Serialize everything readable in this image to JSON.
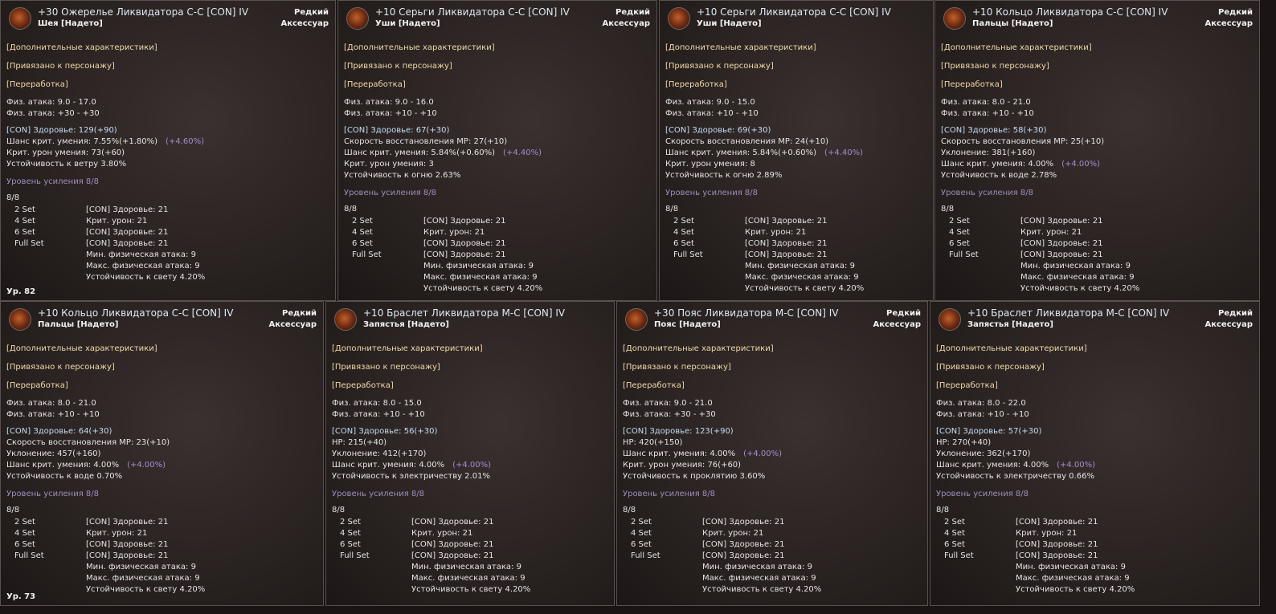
{
  "panels": [
    {
      "title": "+30 Ожерелье Ликвидатора С-С [CON] IV",
      "grade": "Редкий",
      "slot": "Шея [Надето]",
      "kind": "Аксессуар",
      "tags": [
        "[Дополнительные характеристики]",
        "[Привязано к персонажу]",
        "[Переработка]"
      ],
      "base": [
        "Физ. атака: 9.0 - 17.0",
        "Физ. атака: +30 - +30"
      ],
      "extra": [
        {
          "text": "[CON] Здоровье: 129(+90)"
        },
        {
          "text": "Шанс крит. умения: 7.55%(+1.80%)",
          "bonus": "(+4.60%)"
        },
        {
          "text": "Крит. урон умения: 73(+60)"
        },
        {
          "text": "Устойчивость к ветру 3.80%"
        }
      ],
      "enhance": "Уровень усиления 8/8",
      "set_count": "8/8",
      "sets": [
        [
          "2 Set",
          "[CON] Здоровье: 21"
        ],
        [
          "4 Set",
          "Крит. урон: 21"
        ],
        [
          "6 Set",
          "[CON] Здоровье: 21"
        ],
        [
          "Full Set",
          "[CON] Здоровье: 21"
        ]
      ],
      "set_more": [
        "Мин. физическая атака: 9",
        "Макс. физическая атака: 9",
        "Устойчивость к свету 4.20%"
      ],
      "level": "Ур. 82"
    },
    {
      "title": "+10 Серьги Ликвидатора С-С [CON] IV",
      "grade": "Редкий",
      "slot": "Уши [Надето]",
      "kind": "Аксессуар",
      "tags": [
        "[Дополнительные характеристики]",
        "[Привязано к персонажу]",
        "[Переработка]"
      ],
      "base": [
        "Физ. атака: 9.0 - 16.0",
        "Физ. атака: +10 - +10"
      ],
      "extra": [
        {
          "text": "[CON] Здоровье: 67(+30)"
        },
        {
          "text": "Скорость восстановления MP: 27(+10)"
        },
        {
          "text": "Шанс крит. умения: 5.84%(+0.60%)",
          "bonus": "(+4.40%)"
        },
        {
          "text": "Крит. урон умения: 3"
        },
        {
          "text": "Устойчивость к огню 2.63%"
        }
      ],
      "enhance": "Уровень усиления 8/8",
      "set_count": "8/8",
      "sets": [
        [
          "2 Set",
          "[CON] Здоровье: 21"
        ],
        [
          "4 Set",
          "Крит. урон: 21"
        ],
        [
          "6 Set",
          "[CON] Здоровье: 21"
        ],
        [
          "Full Set",
          "[CON] Здоровье: 21"
        ]
      ],
      "set_more": [
        "Мин. физическая атака: 9",
        "Макс. физическая атака: 9",
        "Устойчивость к свету 4.20%"
      ]
    },
    {
      "title": "+10 Серьги Ликвидатора С-С [CON] IV",
      "slot": "Уши [Надето]",
      "tags": [
        "[Дополнительные характеристики]",
        "[Привязано к персонажу]",
        "[Переработка]"
      ],
      "base": [
        "Физ. атака: 9.0 - 15.0",
        "Физ. атака: +10 - +10"
      ],
      "extra": [
        {
          "text": "[CON] Здоровье: 69(+30)"
        },
        {
          "text": "Скорость восстановления MP: 24(+10)"
        },
        {
          "text": "Шанс крит. умения: 5.84%(+0.60%)",
          "bonus": "(+4.40%)"
        },
        {
          "text": "Крит. урон умения: 8"
        },
        {
          "text": "Устойчивость к огню 2.89%"
        }
      ],
      "enhance": "Уровень усиления 8/8",
      "set_count": "8/8",
      "sets": [
        [
          "2 Set",
          "[CON] Здоровье: 21"
        ],
        [
          "4 Set",
          "Крит. урон: 21"
        ],
        [
          "6 Set",
          "[CON] Здоровье: 21"
        ],
        [
          "Full Set",
          "[CON] Здоровье: 21"
        ]
      ],
      "set_more": [
        "Мин. физическая атака: 9",
        "Макс. физическая атака: 9",
        "Устойчивость к свету 4.20%"
      ]
    },
    {
      "title": "+10 Кольцо Ликвидатора С-С [CON] IV",
      "grade": "Редкий",
      "slot": "Пальцы [Надето]",
      "kind": "Аксессуар",
      "tags": [
        "[Дополнительные характеристики]",
        "[Привязано к персонажу]",
        "[Переработка]"
      ],
      "base": [
        "Физ. атака: 8.0 - 21.0",
        "Физ. атака: +10 - +10"
      ],
      "extra": [
        {
          "text": "[CON] Здоровье: 58(+30)"
        },
        {
          "text": "Скорость восстановления MP: 25(+10)"
        },
        {
          "text": "Уклонение: 381(+160)"
        },
        {
          "text": "Шанс крит. умения: 4.00%",
          "bonus": "(+4.00%)"
        },
        {
          "text": "Устойчивость к воде 2.78%"
        }
      ],
      "enhance": "Уровень усиления 8/8",
      "set_count": "8/8",
      "sets": [
        [
          "2 Set",
          "[CON] Здоровье: 21"
        ],
        [
          "4 Set",
          "Крит. урон: 21"
        ],
        [
          "6 Set",
          "[CON] Здоровье: 21"
        ],
        [
          "Full Set",
          "[CON] Здоровье: 21"
        ]
      ],
      "set_more": [
        "Мин. физическая атака: 9",
        "Макс. физическая атака: 9",
        "Устойчивость к свету 4.20%"
      ]
    },
    {
      "title": "+10 Кольцо Ликвидатора С-С [CON] IV",
      "grade": "Редкий",
      "slot": "Пальцы [Надето]",
      "kind": "Аксессуар",
      "tags": [
        "[Дополнительные характеристики]",
        "[Привязано к персонажу]",
        "[Переработка]"
      ],
      "base": [
        "Физ. атака: 8.0 - 21.0",
        "Физ. атака: +10 - +10"
      ],
      "extra": [
        {
          "text": "[CON] Здоровье: 64(+30)"
        },
        {
          "text": "Скорость восстановления MP: 23(+10)"
        },
        {
          "text": "Уклонение: 457(+160)"
        },
        {
          "text": "Шанс крит. умения: 4.00%",
          "bonus": "(+4.00%)"
        },
        {
          "text": "Устойчивость к воде 0.70%"
        }
      ],
      "enhance": "Уровень усиления 8/8",
      "set_count": "8/8",
      "sets": [
        [
          "2 Set",
          "[CON] Здоровье: 21"
        ],
        [
          "4 Set",
          "Крит. урон: 21"
        ],
        [
          "6 Set",
          "[CON] Здоровье: 21"
        ],
        [
          "Full Set",
          "[CON] Здоровье: 21"
        ]
      ],
      "set_more": [
        "Мин. физическая атака: 9",
        "Макс. физическая атака: 9",
        "Устойчивость к свету 4.20%"
      ],
      "level": "Ур. 73"
    },
    {
      "title": "+10 Браслет Ликвидатора М-С [CON] IV",
      "slot": "Запястья [Надето]",
      "tags": [
        "[Дополнительные характеристики]",
        "[Привязано к персонажу]",
        "[Переработка]"
      ],
      "base": [
        "Физ. атака: 8.0 - 15.0",
        "Физ. атака: +10 - +10"
      ],
      "extra": [
        {
          "text": "[CON] Здоровье: 56(+30)"
        },
        {
          "text": "HP: 215(+40)"
        },
        {
          "text": "Уклонение: 412(+170)"
        },
        {
          "text": "Шанс крит. умения: 4.00%",
          "bonus": "(+4.00%)"
        },
        {
          "text": "Устойчивость к электричеству 2.01%"
        }
      ],
      "enhance": "Уровень усиления 8/8",
      "set_count": "8/8",
      "sets": [
        [
          "2 Set",
          "[CON] Здоровье: 21"
        ],
        [
          "4 Set",
          "Крит. урон: 21"
        ],
        [
          "6 Set",
          "[CON] Здоровье: 21"
        ],
        [
          "Full Set",
          "[CON] Здоровье: 21"
        ]
      ],
      "set_more": [
        "Мин. физическая атака: 9",
        "Макс. физическая атака: 9",
        "Устойчивость к свету 4.20%"
      ]
    },
    {
      "title": "+30 Пояс Ликвидатора М-С [CON] IV",
      "grade": "Редкий",
      "slot": "Пояс [Надето]",
      "kind": "Аксессуар",
      "tags": [
        "[Дополнительные характеристики]",
        "[Привязано к персонажу]",
        "[Переработка]"
      ],
      "base": [
        "Физ. атака: 9.0 - 21.0",
        "Физ. атака: +30 - +30"
      ],
      "extra": [
        {
          "text": "[CON] Здоровье: 123(+90)"
        },
        {
          "text": "HP: 420(+150)"
        },
        {
          "text": "Шанс крит. умения: 4.00%",
          "bonus": "(+4.00%)"
        },
        {
          "text": "Крит. урон умения: 76(+60)"
        },
        {
          "text": "Устойчивость к проклятию 3.60%"
        }
      ],
      "enhance": "Уровень усиления 8/8",
      "set_count": "8/8",
      "sets": [
        [
          "2 Set",
          "[CON] Здоровье: 21"
        ],
        [
          "4 Set",
          "Крит. урон: 21"
        ],
        [
          "6 Set",
          "[CON] Здоровье: 21"
        ],
        [
          "Full Set",
          "[CON] Здоровье: 21"
        ]
      ],
      "set_more": [
        "Мин. физическая атака: 9",
        "Макс. физическая атака: 9",
        "Устойчивость к свету 4.20%"
      ]
    },
    {
      "title": "+10 Браслет Ликвидатора М-С [CON] IV",
      "grade": "Редкий",
      "slot": "Запястья [Надето]",
      "kind": "Аксессуар",
      "tags": [
        "[Дополнительные характеристики]",
        "[Привязано к персонажу]",
        "[Переработка]"
      ],
      "base": [
        "Физ. атака: 8.0 - 22.0",
        "Физ. атака: +10 - +10"
      ],
      "extra": [
        {
          "text": "[CON] Здоровье: 57(+30)"
        },
        {
          "text": "HP: 270(+40)"
        },
        {
          "text": "Уклонение: 362(+170)"
        },
        {
          "text": "Шанс крит. умения: 4.00%",
          "bonus": "(+4.00%)"
        },
        {
          "text": "Устойчивость к электричеству 0.66%"
        }
      ],
      "enhance": "Уровень усиления 8/8",
      "set_count": "8/8",
      "sets": [
        [
          "2 Set",
          "[CON] Здоровье: 21"
        ],
        [
          "4 Set",
          "Крит. урон: 21"
        ],
        [
          "6 Set",
          "[CON] Здоровье: 21"
        ],
        [
          "Full Set",
          "[CON] Здоровье: 21"
        ]
      ],
      "set_more": [
        "Мин. физическая атака: 9",
        "Макс. физическая атака: 9",
        "Устойчивость к свету 4.20%"
      ]
    }
  ]
}
